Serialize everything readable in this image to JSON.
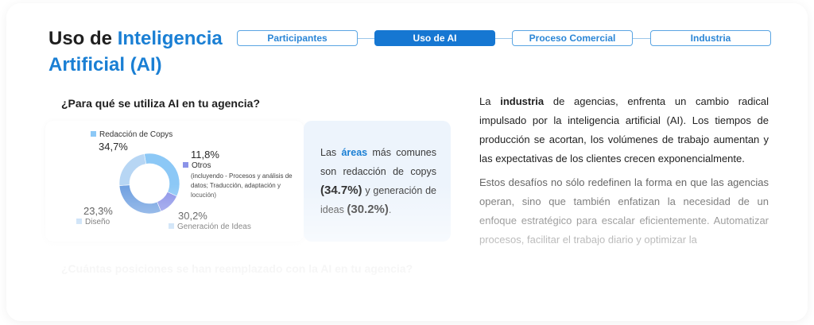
{
  "header": {
    "title_part1": "Uso de ",
    "title_accent_line1": "Inteligencia",
    "title_accent_line2": "Artificial (AI)"
  },
  "steps": [
    {
      "label": "Participantes",
      "active": false
    },
    {
      "label": "Uso de AI",
      "active": true
    },
    {
      "label": "Proceso Comercial",
      "active": false
    },
    {
      "label": "Industria",
      "active": false
    }
  ],
  "question1": "¿Para qué se utiliza AI en tu agencia?",
  "question2": "¿Cuántas posiciones se han reemplazado con la AI en tu agencia?",
  "chart_data": {
    "type": "pie",
    "categories": [
      "Redacción de Copys",
      "Otros",
      "Generación de Ideas",
      "Diseño"
    ],
    "values": [
      34.7,
      11.8,
      30.2,
      23.3
    ],
    "value_labels": [
      "34,7%",
      "11,8%",
      "30,2%",
      "23,3%"
    ],
    "otros_note": "(incluyendo - Procesos y análisis de datos; Traducción, adaptación y locución)",
    "colors": [
      "#8cc8f6",
      "#8b93e8",
      "#6e9fe0",
      "#b7d6f4"
    ]
  },
  "info": {
    "t1": "Las ",
    "t2": "áreas",
    "t3": " más comunes son redacción de copys ",
    "t4": "(34.7%)",
    "t5": " y generación de ideas ",
    "t6": "(30.2%)",
    "t7": "."
  },
  "body": {
    "p1_a": "La ",
    "p1_b": "industria",
    "p1_c": " de agencias, enfrenta un cambio radical impulsado por la inteligencia artificial (AI). Los tiempos de producción se acortan, los volúmenes de trabajo aumentan y las expectativas de los clientes crecen exponencialmente.",
    "p2": "Estos desafíos no sólo redefinen la forma en que las agencias operan, sino que también enfatizan la necesidad de un enfoque estratégico para escalar eficientemente. Automatizar procesos, facilitar el trabajo diario y optimizar la"
  }
}
